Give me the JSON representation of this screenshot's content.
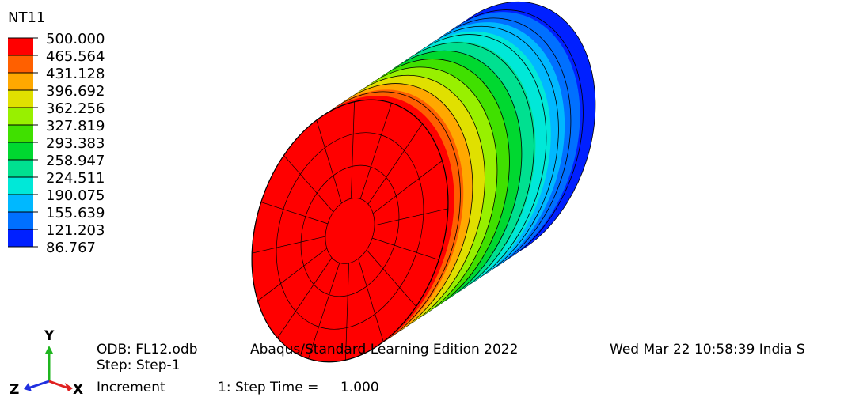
{
  "legend": {
    "title": "NT11",
    "labels": [
      "500.000",
      "465.564",
      "431.128",
      "396.692",
      "362.256",
      "327.819",
      "293.383",
      "258.947",
      "224.511",
      "190.075",
      "155.639",
      "121.203",
      "86.767"
    ],
    "colors": [
      "#ff0000",
      "#ff6000",
      "#ffa800",
      "#e0e000",
      "#98f000",
      "#40e000",
      "#00d830",
      "#00e090",
      "#00e8d8",
      "#00b8ff",
      "#0070ff",
      "#0020ff"
    ]
  },
  "triad": {
    "y": "Y",
    "z": "Z",
    "x": "X"
  },
  "footer": {
    "odb": "ODB: FL12.odb",
    "edition": "Abaqus/Standard Learning Edition 2022",
    "date": "Wed Mar 22 10:58:39 India S",
    "step": "Step: Step-1",
    "increment": "Increment",
    "step_time": "1: Step Time =",
    "time_value": "1.000"
  }
}
